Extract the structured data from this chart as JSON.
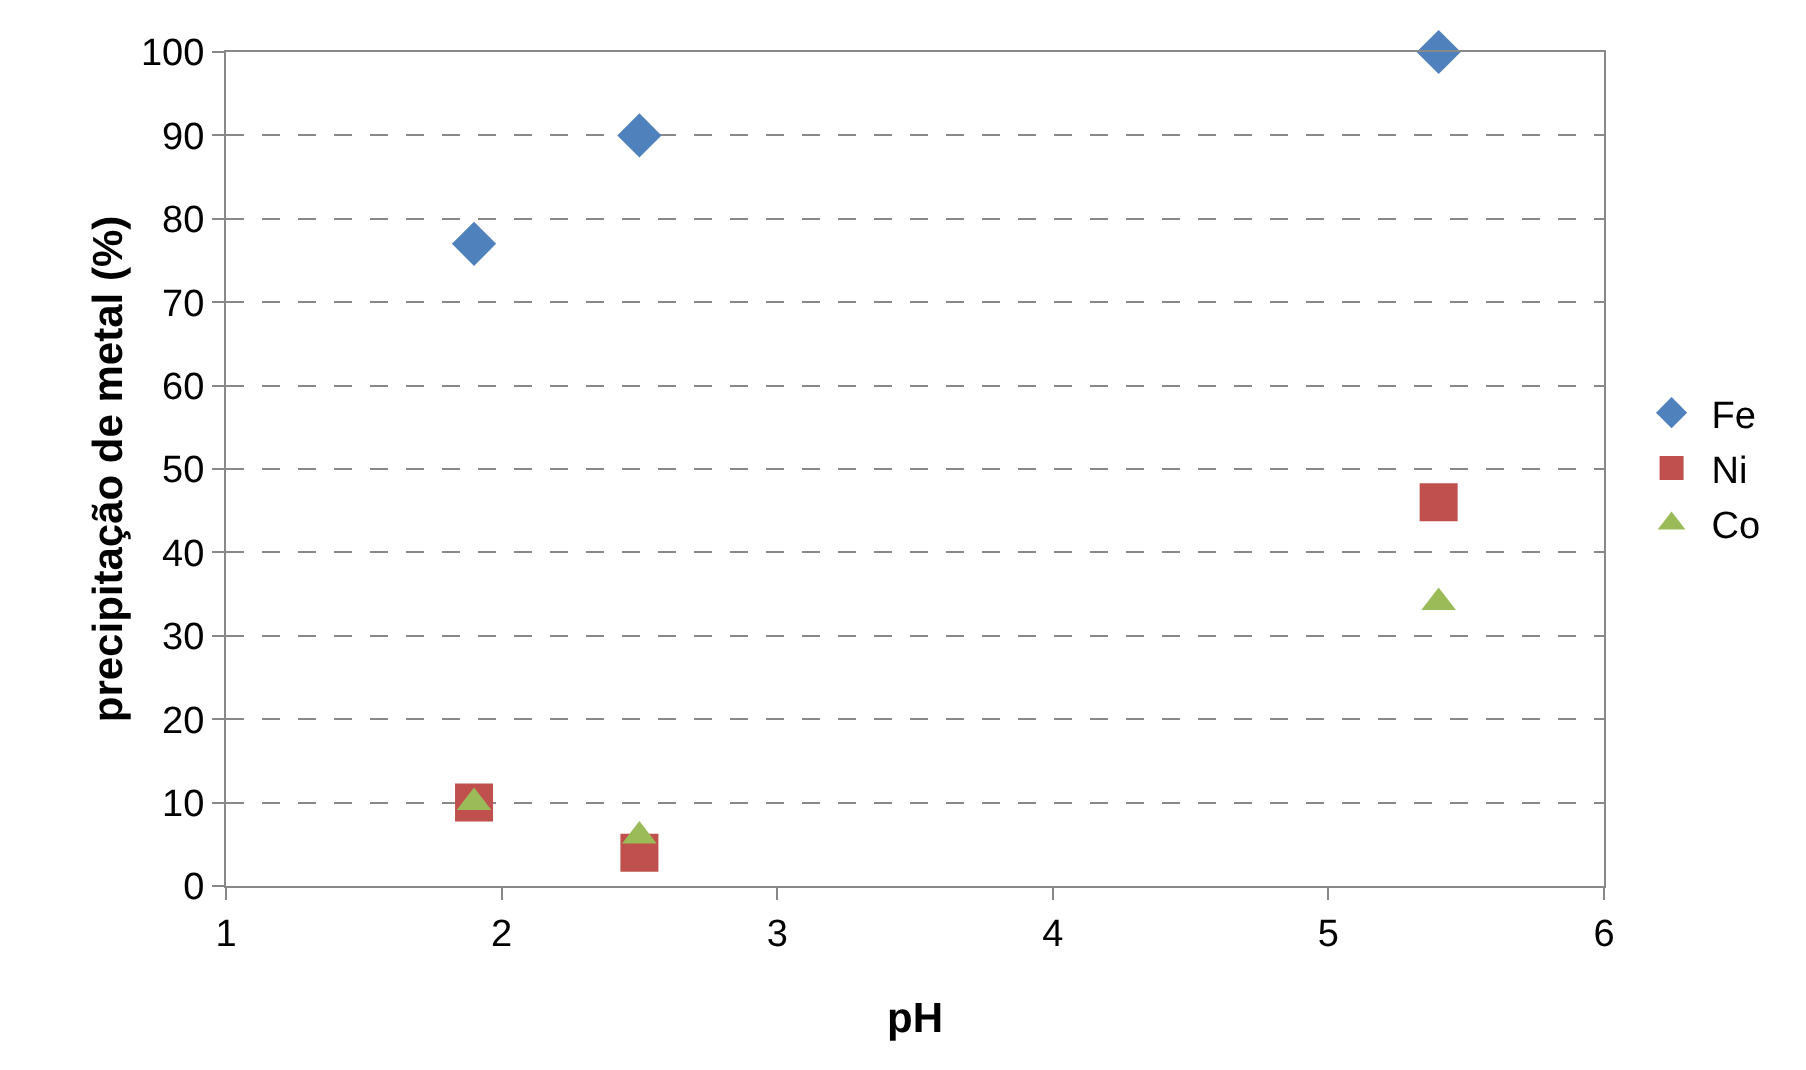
{
  "chart_data": {
    "type": "scatter",
    "xlabel": "pH",
    "ylabel": "precipitação de metal (%)",
    "xlim": [
      1,
      6
    ],
    "xticks": [
      1,
      2,
      3,
      4,
      5,
      6
    ],
    "ylim": [
      0,
      100
    ],
    "yticks": [
      0,
      10,
      20,
      30,
      40,
      50,
      60,
      70,
      80,
      90,
      100
    ],
    "grid": "y",
    "legend": "right",
    "series": [
      {
        "name": "Fe",
        "color": "#4f81bd",
        "marker": "diamond",
        "x": [
          1.9,
          2.5,
          5.4
        ],
        "values": [
          77,
          90,
          100
        ]
      },
      {
        "name": "Ni",
        "color": "#c0504d",
        "marker": "square",
        "x": [
          1.9,
          2.5,
          5.4
        ],
        "values": [
          10,
          4,
          46
        ]
      },
      {
        "name": "Co",
        "color": "#9bbb59",
        "marker": "triangle",
        "x": [
          1.9,
          2.5,
          5.4
        ],
        "values": [
          10,
          6,
          34
        ]
      }
    ]
  }
}
